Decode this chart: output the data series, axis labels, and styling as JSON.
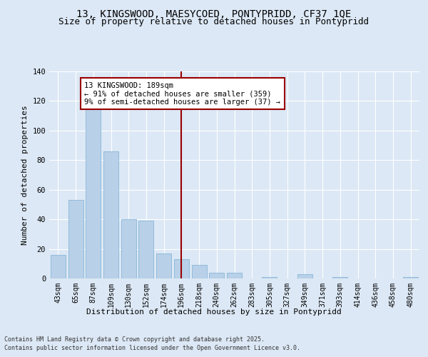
{
  "title_line1": "13, KINGSWOOD, MAESYCOED, PONTYPRIDD, CF37 1QE",
  "title_line2": "Size of property relative to detached houses in Pontypridd",
  "xlabel": "Distribution of detached houses by size in Pontypridd",
  "ylabel": "Number of detached properties",
  "categories": [
    "43sqm",
    "65sqm",
    "87sqm",
    "109sqm",
    "130sqm",
    "152sqm",
    "174sqm",
    "196sqm",
    "218sqm",
    "240sqm",
    "262sqm",
    "283sqm",
    "305sqm",
    "327sqm",
    "349sqm",
    "371sqm",
    "393sqm",
    "414sqm",
    "436sqm",
    "458sqm",
    "480sqm"
  ],
  "values": [
    16,
    53,
    115,
    86,
    40,
    39,
    17,
    13,
    9,
    4,
    4,
    0,
    1,
    0,
    3,
    0,
    1,
    0,
    0,
    0,
    1
  ],
  "bar_color": "#b8d0e8",
  "bar_edge_color": "#7aafd4",
  "vline_x": 7,
  "vline_color": "#990000",
  "annotation_text": "13 KINGSWOOD: 189sqm\n← 91% of detached houses are smaller (359)\n9% of semi-detached houses are larger (37) →",
  "annotation_box_color": "#ffffff",
  "annotation_box_edge": "#990000",
  "annotation_fontsize": 7.5,
  "footnote_line1": "Contains HM Land Registry data © Crown copyright and database right 2025.",
  "footnote_line2": "Contains public sector information licensed under the Open Government Licence v3.0.",
  "bg_color": "#dce8f5",
  "plot_bg_color": "#dce8f5",
  "title_fontsize": 10,
  "subtitle_fontsize": 9,
  "axis_label_fontsize": 8,
  "tick_fontsize": 7,
  "ylim": [
    0,
    140
  ],
  "yticks": [
    0,
    20,
    40,
    60,
    80,
    100,
    120,
    140
  ]
}
